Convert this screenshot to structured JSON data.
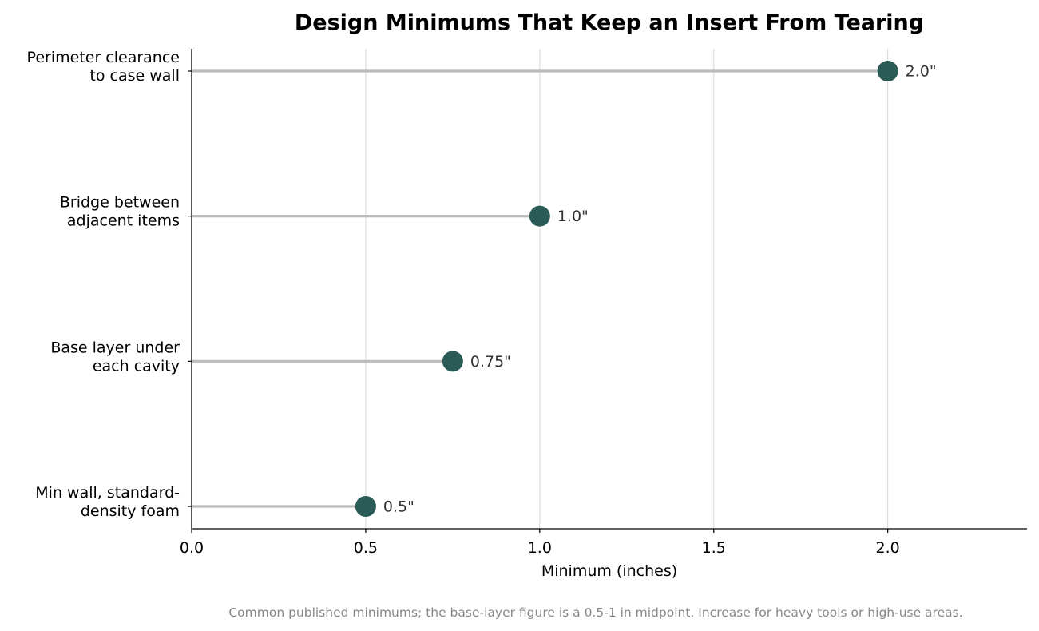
{
  "chart_data": {
    "type": "lollipop",
    "title": "Design Minimums That Keep an Insert From Tearing",
    "xlabel": "Minimum (inches)",
    "ylabel": "",
    "xlim": [
      0,
      2.4
    ],
    "xticks": [
      0.0,
      0.5,
      1.0,
      1.5,
      2.0
    ],
    "xtick_labels": [
      "0.0",
      "0.5",
      "1.0",
      "1.5",
      "2.0"
    ],
    "grid": "vertical",
    "categories": [
      [
        "Perimeter clearance",
        "to case wall"
      ],
      [
        "Bridge between",
        "adjacent items"
      ],
      [
        "Base layer under",
        "each cavity"
      ],
      [
        "Min wall, standard-",
        "density foam"
      ]
    ],
    "values": [
      2.0,
      1.0,
      0.75,
      0.5
    ],
    "value_labels": [
      "2.0\"",
      "1.0\"",
      "0.75\"",
      "0.5\""
    ],
    "footnote": "Common published minimums; the base-layer figure is a 0.5-1 in midpoint. Increase for heavy tools or high-use areas.",
    "colors": {
      "marker": "#2b5b57",
      "stem": "#bbbbbb",
      "grid": "#dddddd",
      "axis": "#000000"
    }
  }
}
